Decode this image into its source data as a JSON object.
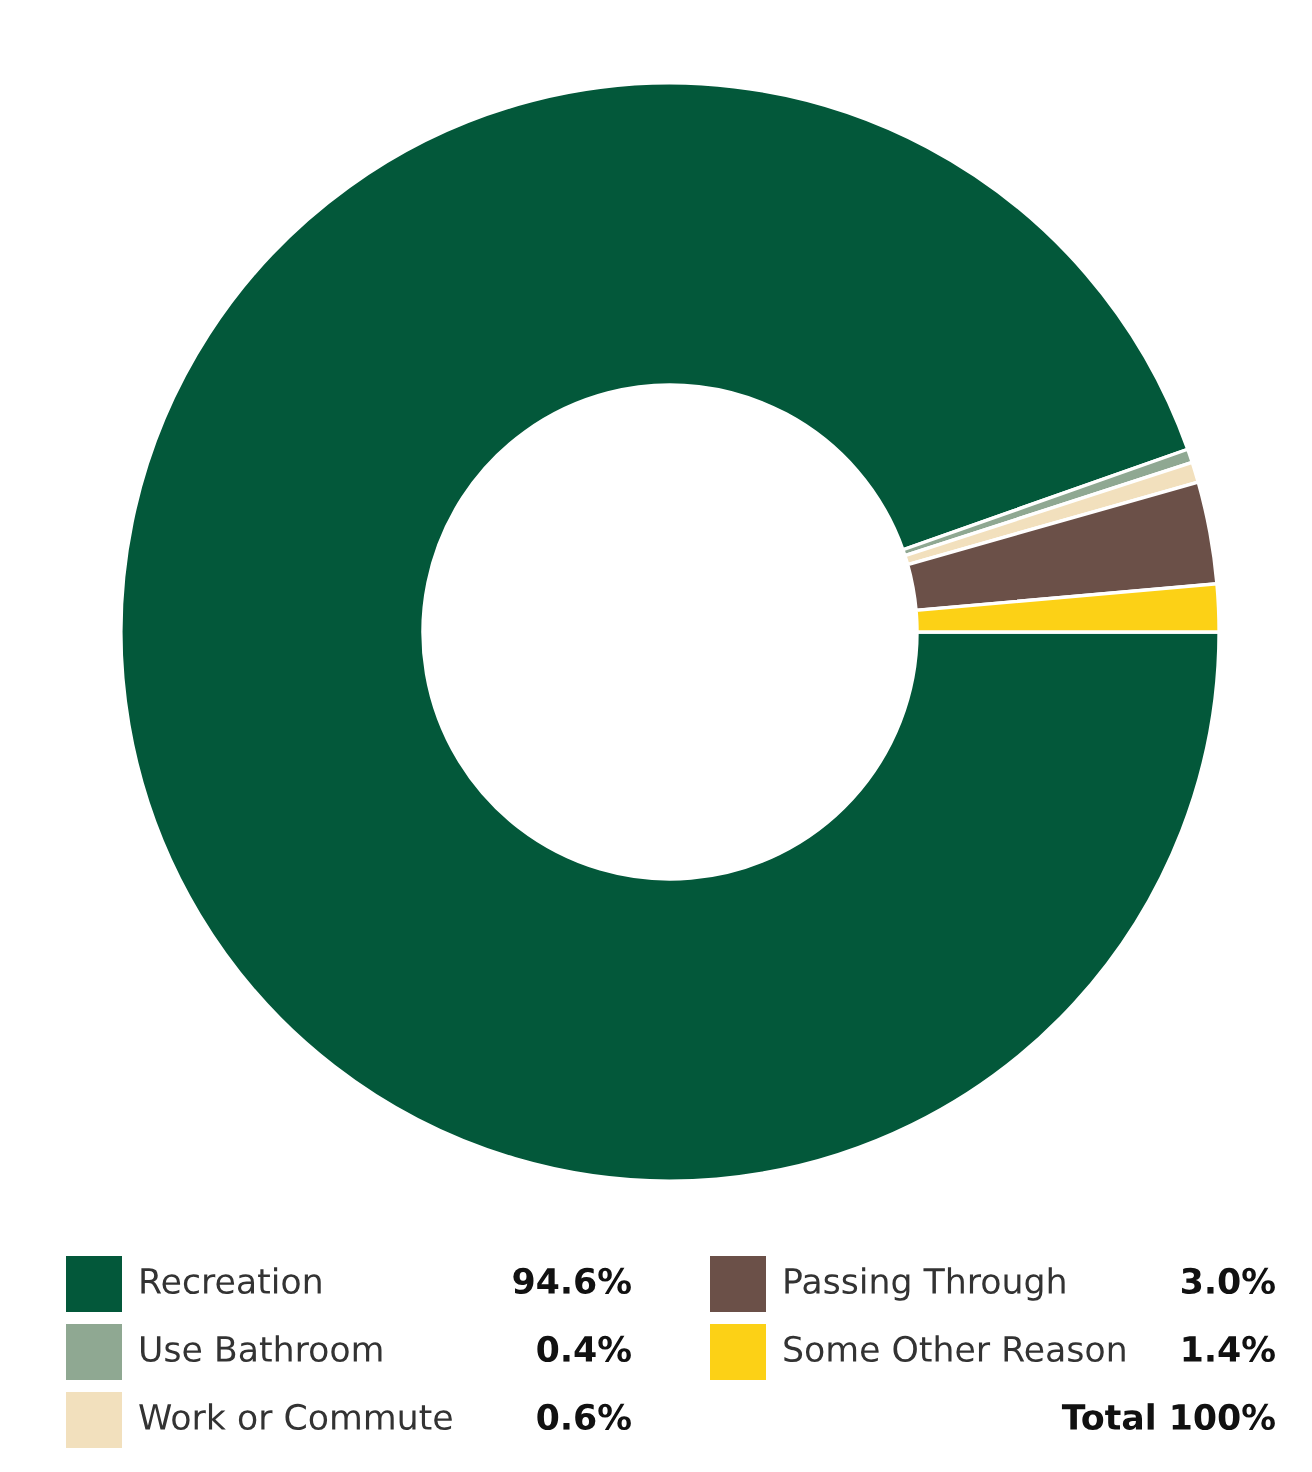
{
  "chart_data": {
    "type": "donut",
    "categories": [
      "Recreation",
      "Use Bathroom",
      "Work or Commute",
      "Passing Through",
      "Some Other Reason"
    ],
    "values": [
      94.6,
      0.4,
      0.6,
      3.0,
      1.4
    ],
    "value_labels": [
      "94.6%",
      "0.4%",
      "0.6%",
      "3.0%",
      "1.4%"
    ],
    "colors": [
      "#03583a",
      "#8fa892",
      "#f2e0bd",
      "#6b5048",
      "#fcd116"
    ],
    "legend": "bottom",
    "annotations": [
      "Total 100%"
    ]
  }
}
